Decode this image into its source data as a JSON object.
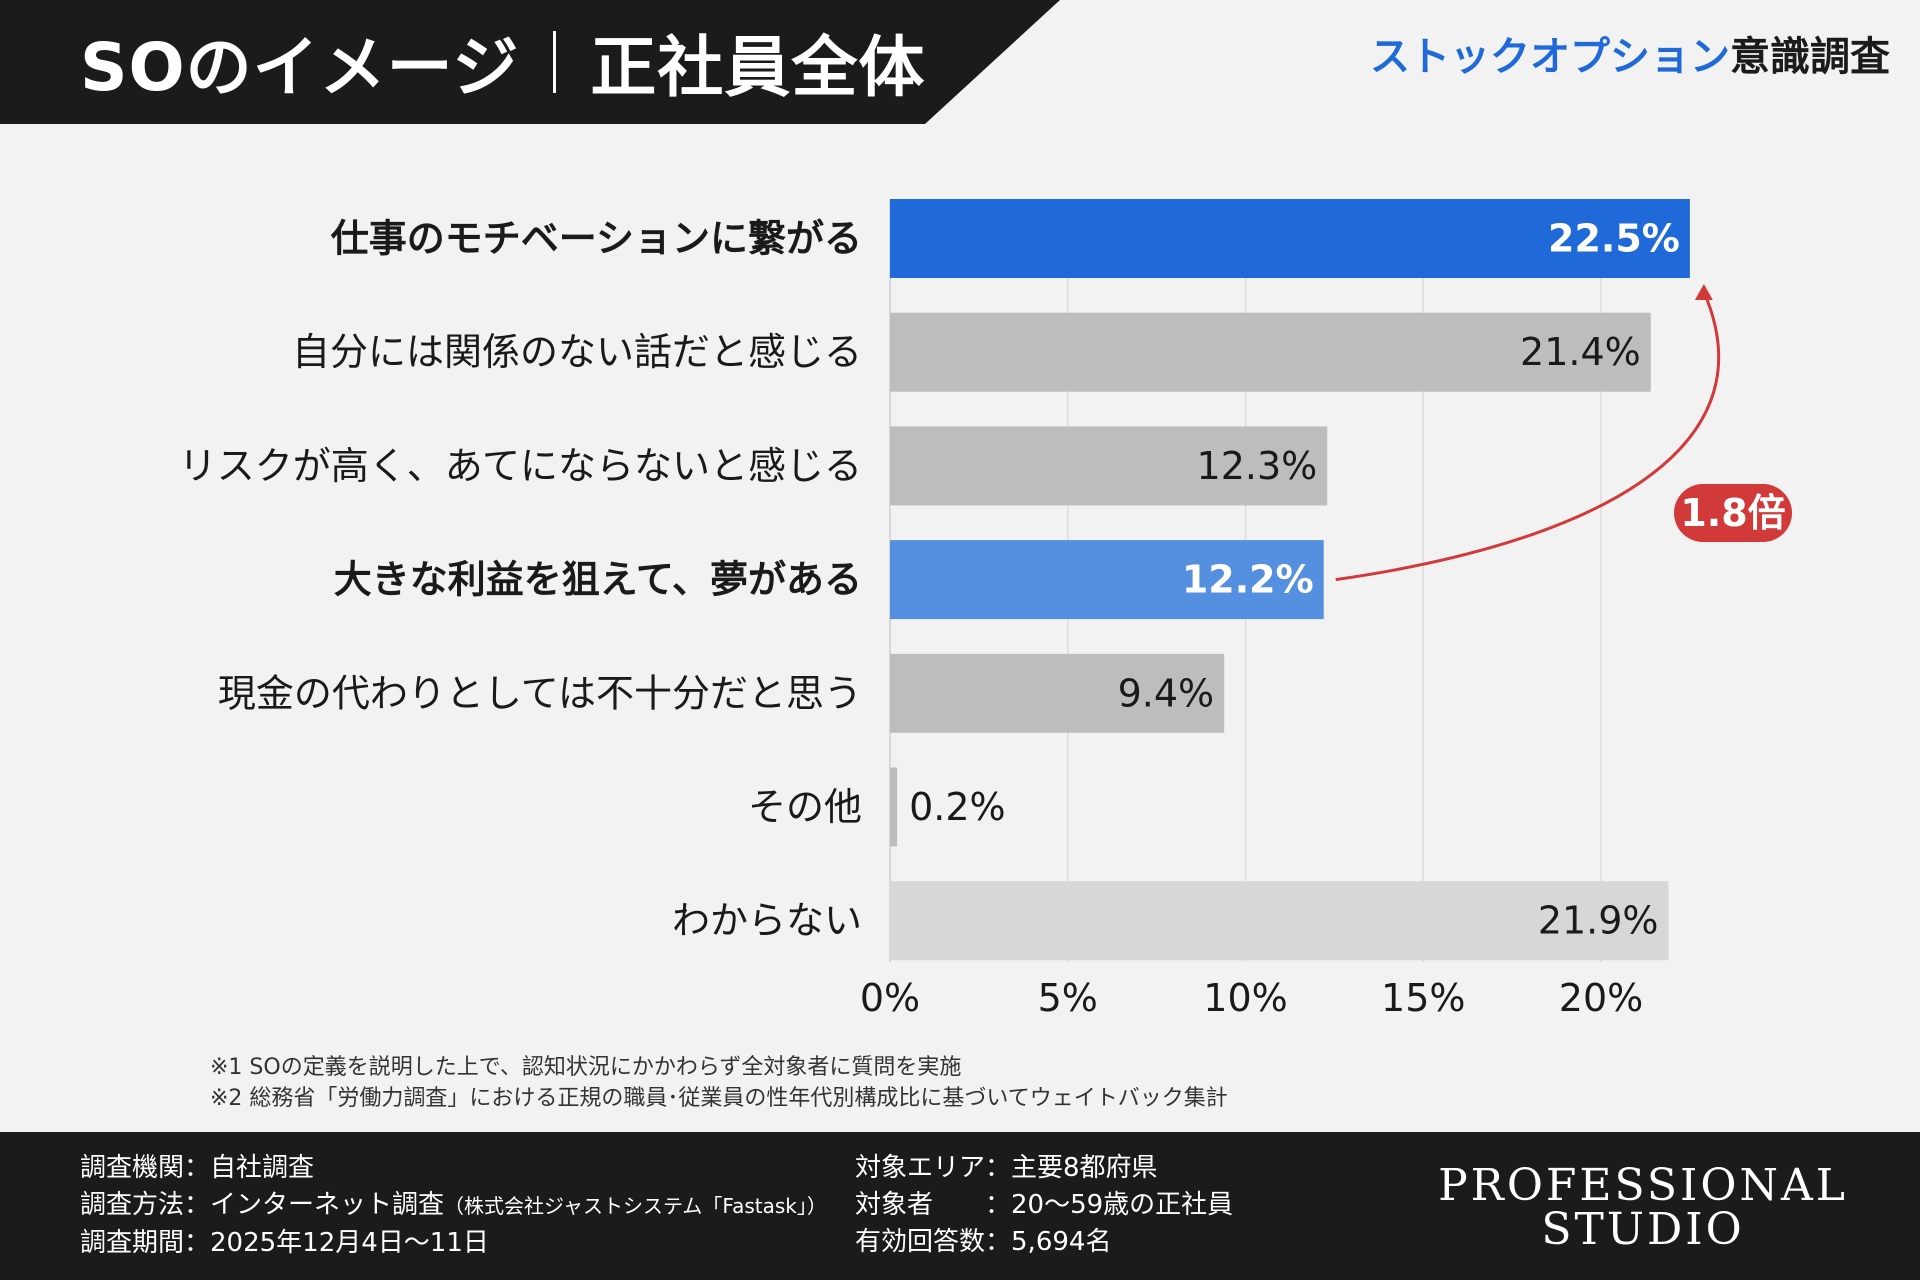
{
  "header": {
    "title_main": "SOのイメージ",
    "title_sub": "正社員全体",
    "brand_blue": "ストックオプション",
    "brand_dark": "意識調査"
  },
  "chart_data": {
    "type": "bar",
    "orientation": "horizontal",
    "categories": [
      "仕事のモチベーションに繋がる",
      "自分には関係のない話だと感じる",
      "リスクが高く、あてにならないと感じる",
      "大きな利益を狙えて、夢がある",
      "現金の代わりとしては不十分だと思う",
      "その他",
      "わからない"
    ],
    "values": [
      22.5,
      21.4,
      12.3,
      12.2,
      9.4,
      0.2,
      21.9
    ],
    "value_labels": [
      "22.5%",
      "21.4%",
      "12.3%",
      "12.2%",
      "9.4%",
      "0.2%",
      "21.9%"
    ],
    "highlighted": [
      true,
      false,
      false,
      true,
      false,
      false,
      false
    ],
    "bar_colors": [
      "#1f6ad8",
      "#bdbdbd",
      "#bdbdbd",
      "#5590e0",
      "#bdbdbd",
      "#bdbdbd",
      "#d7d7d7"
    ],
    "xticks": [
      0,
      5,
      10,
      15,
      20
    ],
    "xtick_labels": [
      "0%",
      "5%",
      "10%",
      "15%",
      "20%"
    ],
    "xlim": [
      0,
      25
    ],
    "grid": true,
    "annotation": {
      "text": "1.8倍",
      "from_category": "大きな利益を狙えて、夢がある",
      "to_category": "仕事のモチベーションに繋がる",
      "color": "#d23a3a"
    }
  },
  "notes": [
    "※1  SOの定義を説明した上で、認知状況にかかわらず全対象者に質問を実施",
    "※2  総務省「労働力調査」における正規の職員･従業員の性年代別構成比に基づいてウェイトバック集計"
  ],
  "footer": {
    "left": [
      {
        "label": "調査機関：",
        "value": "自社調査",
        "extra": ""
      },
      {
        "label": "調査方法：",
        "value": "インターネット調査",
        "extra": "（株式会社ジャストシステム「Fastask」）"
      },
      {
        "label": "調査期間：",
        "value": "2025年12月4日～11日",
        "extra": ""
      }
    ],
    "right": [
      {
        "label": "対象エリア：",
        "value": "主要8都府県"
      },
      {
        "label": "対象者　　：",
        "value": "20～59歳の正社員"
      },
      {
        "label": "有効回答数：",
        "value": "5,694名"
      }
    ],
    "logo_line1": "PROFESSIONAL",
    "logo_line2": "STUDIO"
  }
}
